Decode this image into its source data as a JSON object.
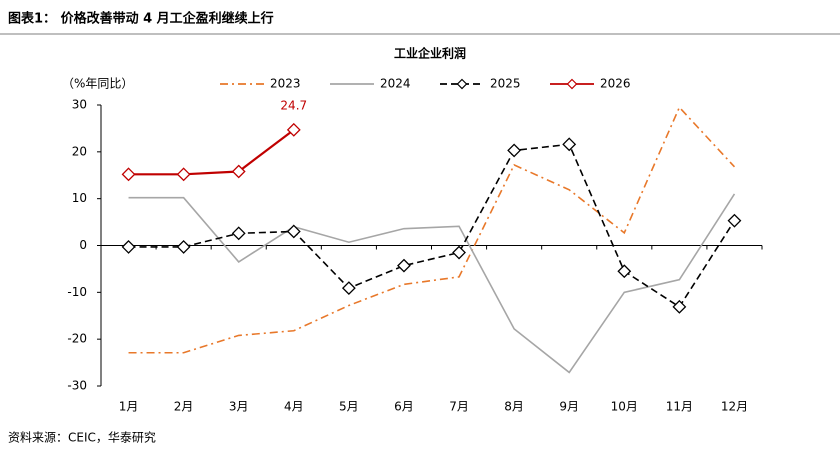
{
  "header": {
    "title": "图表1： 价格改善带动 4 月工企盈利继续上行"
  },
  "source": "资料来源：CEIC，华泰研究",
  "chart_data": {
    "type": "line",
    "title": "工业企业利润",
    "y_label": "（%年同比）",
    "categories": [
      "1月",
      "2月",
      "3月",
      "4月",
      "5月",
      "6月",
      "7月",
      "8月",
      "9月",
      "10月",
      "11月",
      "12月"
    ],
    "series": [
      {
        "name": "2023",
        "color": "#e8782a",
        "style": "dashdot",
        "marker": "none",
        "values": [
          -22.9,
          -22.9,
          -19.2,
          -18.2,
          -12.8,
          -8.3,
          -6.7,
          17.2,
          11.9,
          2.7,
          29.5,
          16.8
        ]
      },
      {
        "name": "2024",
        "color": "#a6a6a6",
        "style": "solid",
        "marker": "none",
        "values": [
          10.2,
          10.2,
          -3.5,
          4.0,
          0.7,
          3.6,
          4.1,
          -17.8,
          -27.1,
          -10.0,
          -7.3,
          11.0
        ]
      },
      {
        "name": "2025",
        "color": "#000000",
        "style": "dashed",
        "marker": "diamond",
        "values": [
          -0.3,
          -0.3,
          2.6,
          3.0,
          -9.1,
          -4.3,
          -1.5,
          20.3,
          21.6,
          -5.5,
          -13.1,
          5.3
        ]
      },
      {
        "name": "2026",
        "color": "#c00000",
        "style": "solid",
        "marker": "diamond",
        "values": [
          15.2,
          15.2,
          15.8,
          24.7,
          null,
          null,
          null,
          null,
          null,
          null,
          null,
          null
        ]
      }
    ],
    "ylim": [
      -30,
      30
    ],
    "yticks": [
      -30,
      -20,
      -10,
      0,
      10,
      20,
      30
    ],
    "grid": false,
    "legend": "top"
  }
}
